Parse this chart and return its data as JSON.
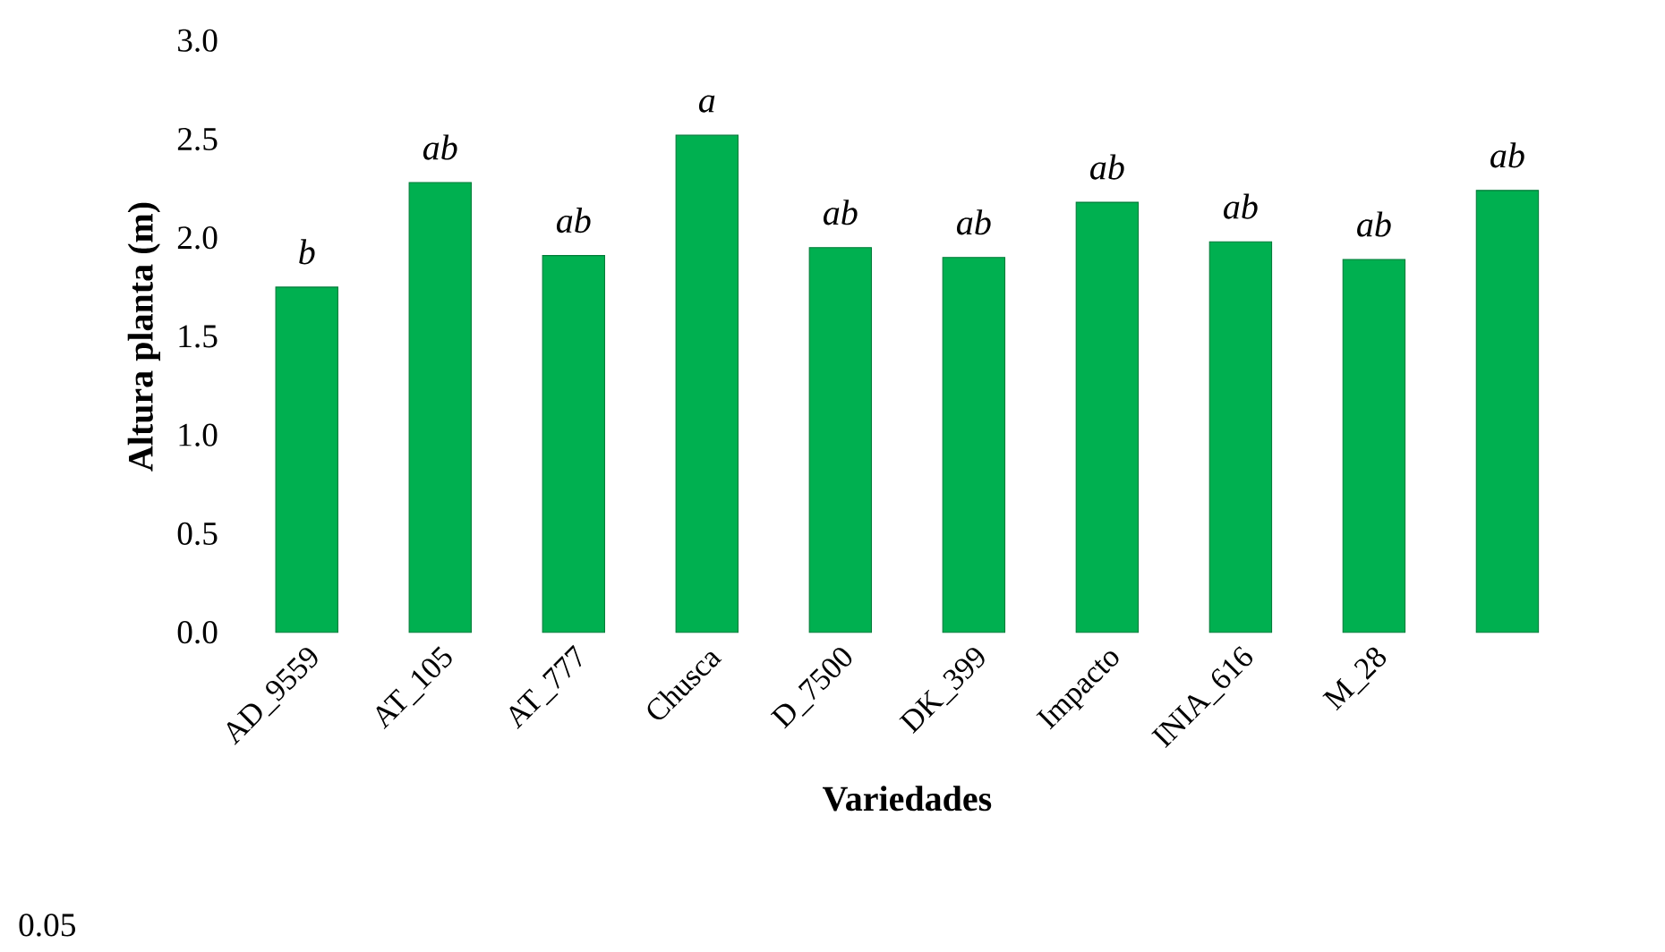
{
  "chart_data": {
    "type": "bar",
    "xlabel": "Variedades",
    "ylabel": "Altura planta (m)",
    "categories": [
      "AD_9559",
      "AT_105",
      "AT_777",
      "Chusca",
      "D_7500",
      "DK_399",
      "Impacto",
      "INIA_616",
      "M_28",
      null
    ],
    "values": [
      1.75,
      2.28,
      1.91,
      2.52,
      1.95,
      1.9,
      2.18,
      1.98,
      1.89,
      2.24
    ],
    "value_labels": [
      "b",
      "ab",
      "ab",
      "a",
      "ab",
      "ab",
      "ab",
      "ab",
      "ab",
      "ab"
    ],
    "color": "#00b050",
    "ylim": [
      0,
      3.0
    ],
    "yticks": [
      {
        "value": 0,
        "label": "0.0"
      },
      {
        "value": 0.5,
        "label": "0.5"
      },
      {
        "value": 1.0,
        "label": "1.0"
      },
      {
        "value": 1.5,
        "label": "1.5"
      },
      {
        "value": 2.0,
        "label": "2.0"
      },
      {
        "value": 2.5,
        "label": "2.5"
      },
      {
        "value": 3.0,
        "label": "3.0"
      }
    ],
    "annotations": [
      "0.05"
    ]
  }
}
